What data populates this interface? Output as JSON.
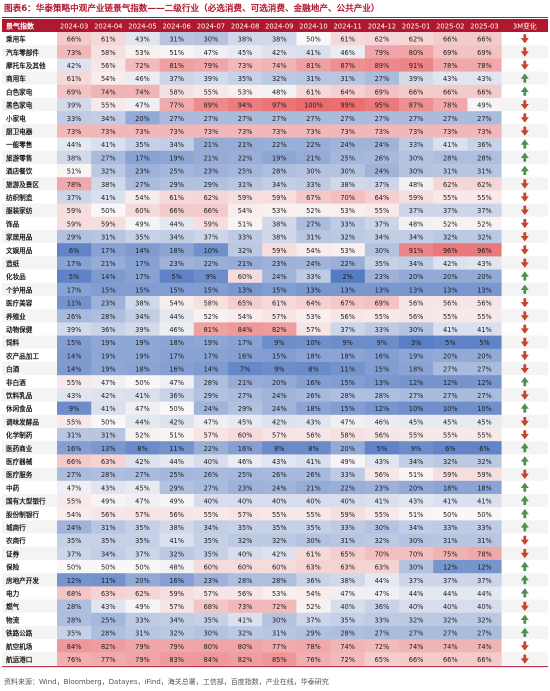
{
  "title": "图表6：华泰策略中观产业链景气指数——二级行业（必选消费、可选消费、金融地产、公共产业）",
  "source": "资料来源：Wind，Bloomberg，Datayes，iFind，海关总署，工信部，百度指数，产业在线，华泰研究",
  "chart_data": {
    "type": "heatmap",
    "header_label": "景气指数",
    "change_label": "3M变化",
    "columns": [
      "2024-03",
      "2024-04",
      "2024-05",
      "2024-06",
      "2024-07",
      "2024-08",
      "2024-09",
      "2024-10",
      "2024-11",
      "2024-12",
      "2025-01",
      "2025-02",
      "2025-03"
    ],
    "rows": [
      {
        "name": "乘用车",
        "values": [
          66,
          61,
          43,
          31,
          30,
          38,
          38,
          50,
          61,
          62,
          62,
          66,
          66
        ],
        "change": "down"
      },
      {
        "name": "汽车零部件",
        "values": [
          73,
          58,
          53,
          51,
          47,
          45,
          42,
          41,
          46,
          79,
          80,
          69,
          69
        ],
        "change": "down"
      },
      {
        "name": "摩托车及其他",
        "values": [
          42,
          56,
          72,
          81,
          79,
          73,
          74,
          81,
          87,
          89,
          91,
          78,
          78
        ],
        "change": "down"
      },
      {
        "name": "商用车",
        "values": [
          61,
          54,
          46,
          37,
          39,
          35,
          32,
          31,
          31,
          27,
          39,
          43,
          43
        ],
        "change": "up"
      },
      {
        "name": "白色家电",
        "values": [
          69,
          74,
          74,
          58,
          55,
          53,
          48,
          61,
          64,
          69,
          66,
          66,
          66
        ],
        "change": "up"
      },
      {
        "name": "黑色家电",
        "values": [
          39,
          55,
          47,
          77,
          89,
          94,
          97,
          100,
          99,
          95,
          87,
          78,
          49
        ],
        "change": "down"
      },
      {
        "name": "小家电",
        "values": [
          33,
          34,
          20,
          27,
          27,
          27,
          27,
          27,
          27,
          27,
          27,
          27,
          27
        ],
        "change": "down"
      },
      {
        "name": "厨卫电器",
        "values": [
          73,
          73,
          73,
          73,
          73,
          73,
          73,
          73,
          73,
          73,
          73,
          73,
          73
        ],
        "change": "down"
      },
      {
        "name": "一般零售",
        "values": [
          44,
          41,
          35,
          34,
          21,
          21,
          22,
          22,
          24,
          24,
          33,
          41,
          36
        ],
        "change": "up"
      },
      {
        "name": "旅游零售",
        "values": [
          38,
          27,
          17,
          19,
          21,
          22,
          19,
          21,
          25,
          26,
          30,
          28,
          28
        ],
        "change": "up"
      },
      {
        "name": "酒店餐饮",
        "values": [
          51,
          32,
          23,
          25,
          23,
          25,
          28,
          30,
          30,
          24,
          30,
          31,
          31
        ],
        "change": "up"
      },
      {
        "name": "旅游及景区",
        "values": [
          78,
          38,
          27,
          29,
          29,
          31,
          34,
          33,
          38,
          37,
          48,
          62,
          62
        ],
        "change": "down"
      },
      {
        "name": "纺织制造",
        "values": [
          37,
          41,
          54,
          61,
          62,
          59,
          59,
          67,
          70,
          64,
          59,
          55,
          55
        ],
        "change": "down"
      },
      {
        "name": "服装家纺",
        "values": [
          59,
          50,
          60,
          66,
          66,
          54,
          53,
          52,
          53,
          55,
          37,
          37,
          37
        ],
        "change": "down"
      },
      {
        "name": "饰品",
        "values": [
          59,
          59,
          49,
          44,
          59,
          51,
          38,
          27,
          33,
          37,
          48,
          52,
          52
        ],
        "change": "down"
      },
      {
        "name": "家居用品",
        "values": [
          29,
          31,
          35,
          34,
          37,
          33,
          38,
          31,
          32,
          34,
          34,
          32,
          32
        ],
        "change": "down"
      },
      {
        "name": "文娱用品",
        "values": [
          6,
          17,
          14,
          18,
          10,
          32,
          59,
          54,
          53,
          30,
          91,
          96,
          96
        ],
        "change": "down"
      },
      {
        "name": "造纸",
        "values": [
          17,
          21,
          17,
          23,
          22,
          21,
          23,
          24,
          22,
          35,
          34,
          42,
          43
        ],
        "change": "down"
      },
      {
        "name": "化妆品",
        "values": [
          5,
          14,
          17,
          5,
          9,
          60,
          24,
          33,
          2,
          23,
          20,
          20,
          20
        ],
        "change": "up"
      },
      {
        "name": "个护用品",
        "values": [
          17,
          15,
          15,
          15,
          15,
          13,
          15,
          13,
          13,
          13,
          13,
          13,
          13
        ],
        "change": "up"
      },
      {
        "name": "医疗美容",
        "values": [
          11,
          23,
          38,
          54,
          58,
          65,
          61,
          64,
          67,
          69,
          56,
          56,
          56
        ],
        "change": "down"
      },
      {
        "name": "养殖业",
        "values": [
          26,
          28,
          34,
          44,
          52,
          54,
          57,
          53,
          56,
          55,
          56,
          55,
          55
        ],
        "change": "down"
      },
      {
        "name": "动物保健",
        "values": [
          39,
          36,
          39,
          46,
          81,
          84,
          82,
          57,
          37,
          33,
          30,
          41,
          41
        ],
        "change": "down"
      },
      {
        "name": "饲料",
        "values": [
          15,
          19,
          19,
          18,
          19,
          17,
          9,
          10,
          9,
          9,
          3,
          5,
          5
        ],
        "change": "down"
      },
      {
        "name": "农产品加工",
        "values": [
          14,
          19,
          19,
          17,
          17,
          16,
          15,
          18,
          18,
          16,
          19,
          20,
          20
        ],
        "change": "down"
      },
      {
        "name": "白酒",
        "values": [
          14,
          19,
          18,
          16,
          14,
          7,
          9,
          8,
          11,
          15,
          18,
          27,
          27
        ],
        "change": "down"
      },
      {
        "name": "非白酒",
        "values": [
          55,
          47,
          50,
          47,
          28,
          21,
          20,
          16,
          15,
          13,
          12,
          12,
          12
        ],
        "change": "up"
      },
      {
        "name": "饮料乳品",
        "values": [
          43,
          42,
          41,
          36,
          29,
          27,
          24,
          26,
          28,
          28,
          27,
          27,
          27
        ],
        "change": "down"
      },
      {
        "name": "休闲食品",
        "values": [
          9,
          41,
          47,
          50,
          24,
          29,
          24,
          18,
          15,
          12,
          10,
          10,
          10
        ],
        "change": "up"
      },
      {
        "name": "调味发酵品",
        "values": [
          55,
          50,
          44,
          42,
          47,
          45,
          42,
          43,
          47,
          46,
          45,
          45,
          45
        ],
        "change": "down"
      },
      {
        "name": "化学制药",
        "values": [
          31,
          31,
          52,
          51,
          57,
          60,
          57,
          56,
          58,
          56,
          55,
          55,
          55
        ],
        "change": "down"
      },
      {
        "name": "医药商业",
        "values": [
          16,
          13,
          8,
          11,
          22,
          16,
          8,
          8,
          20,
          5,
          9,
          6,
          6
        ],
        "change": "up"
      },
      {
        "name": "医疗器械",
        "values": [
          66,
          63,
          42,
          44,
          40,
          46,
          43,
          41,
          49,
          43,
          34,
          32,
          32
        ],
        "change": "up"
      },
      {
        "name": "医疗服务",
        "values": [
          27,
          28,
          27,
          25,
          26,
          25,
          26,
          26,
          33,
          56,
          51,
          59,
          59
        ],
        "change": "down"
      },
      {
        "name": "中药",
        "values": [
          47,
          43,
          45,
          29,
          27,
          23,
          24,
          21,
          22,
          23,
          20,
          18,
          18
        ],
        "change": "up"
      },
      {
        "name": "国有大型银行",
        "values": [
          55,
          49,
          47,
          49,
          40,
          40,
          40,
          40,
          40,
          41,
          43,
          41,
          41
        ],
        "change": "up"
      },
      {
        "name": "股份制银行",
        "values": [
          54,
          56,
          57,
          56,
          55,
          57,
          55,
          55,
          59,
          55,
          51,
          50,
          50
        ],
        "change": "up"
      },
      {
        "name": "城商行",
        "values": [
          24,
          31,
          35,
          38,
          34,
          35,
          35,
          35,
          33,
          30,
          34,
          33,
          33
        ],
        "change": "up"
      },
      {
        "name": "农商行",
        "values": [
          35,
          35,
          35,
          41,
          35,
          32,
          32,
          30,
          31,
          32,
          30,
          31,
          31
        ],
        "change": "down"
      },
      {
        "name": "证券",
        "values": [
          37,
          34,
          37,
          32,
          35,
          40,
          42,
          61,
          65,
          70,
          70,
          75,
          78
        ],
        "change": "down"
      },
      {
        "name": "保险",
        "values": [
          50,
          50,
          50,
          48,
          60,
          60,
          60,
          63,
          63,
          63,
          30,
          12,
          12
        ],
        "change": "up"
      },
      {
        "name": "房地产开发",
        "values": [
          12,
          11,
          20,
          16,
          23,
          28,
          28,
          36,
          38,
          44,
          37,
          37,
          37
        ],
        "change": "up"
      },
      {
        "name": "电力",
        "values": [
          68,
          63,
          62,
          59,
          57,
          56,
          53,
          54,
          47,
          47,
          44,
          44,
          44
        ],
        "change": "up"
      },
      {
        "name": "燃气",
        "values": [
          28,
          43,
          49,
          57,
          68,
          73,
          72,
          52,
          40,
          36,
          40,
          40,
          40
        ],
        "change": "down"
      },
      {
        "name": "物流",
        "values": [
          28,
          25,
          33,
          34,
          35,
          41,
          30,
          37,
          35,
          33,
          32,
          32,
          32
        ],
        "change": "up"
      },
      {
        "name": "铁路公路",
        "values": [
          35,
          28,
          31,
          32,
          30,
          32,
          31,
          29,
          28,
          27,
          27,
          27,
          27
        ],
        "change": "up"
      },
      {
        "name": "航空机场",
        "values": [
          84,
          82,
          79,
          79,
          80,
          80,
          77,
          78,
          74,
          72,
          74,
          74,
          74
        ],
        "change": "down"
      },
      {
        "name": "航运港口",
        "values": [
          76,
          77,
          79,
          83,
          84,
          82,
          85,
          76,
          72,
          65,
          66,
          66,
          66
        ],
        "change": "down"
      }
    ]
  }
}
